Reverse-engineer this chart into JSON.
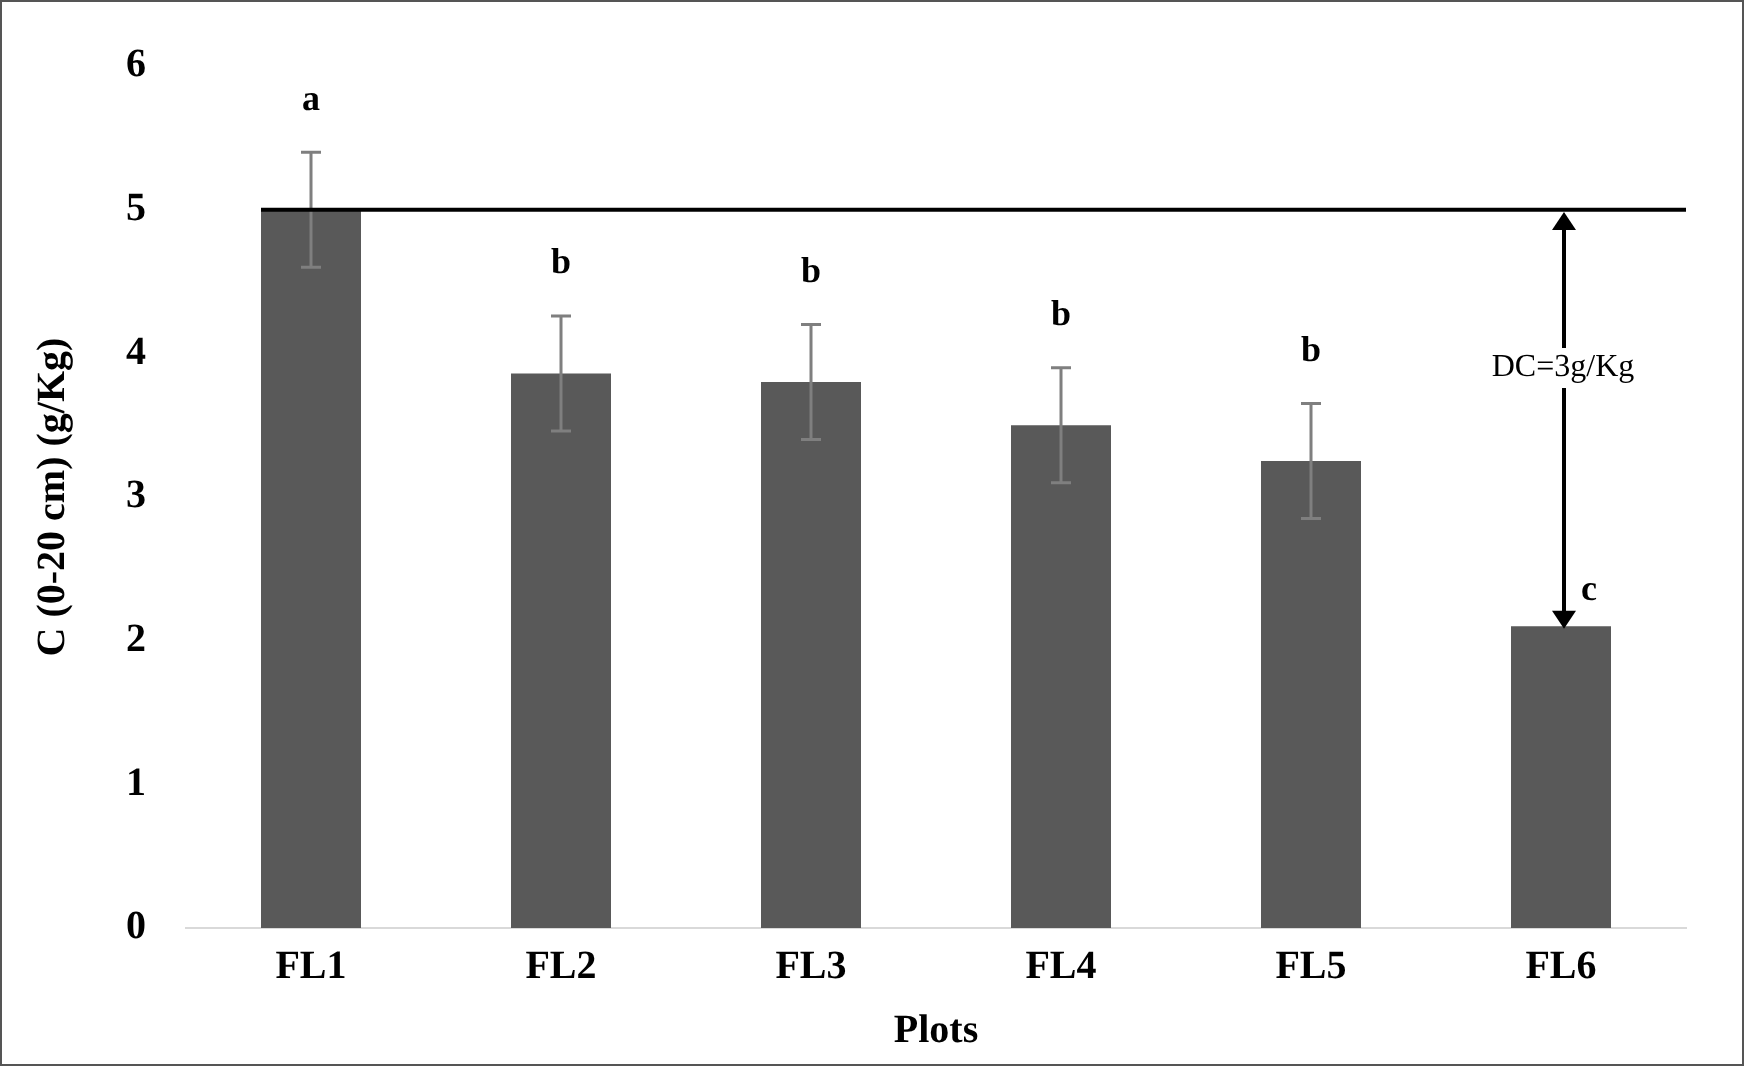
{
  "chart_data": {
    "type": "bar",
    "xlabel": "Plots",
    "ylabel": "C (0-20 cm) (g/Kg)",
    "categories": [
      "FL1",
      "FL2",
      "FL3",
      "FL4",
      "FL5",
      "FL6"
    ],
    "values": [
      5.0,
      3.86,
      3.8,
      3.5,
      3.25,
      2.1
    ],
    "errors": [
      0.4,
      0.4,
      0.4,
      0.4,
      0.4,
      null
    ],
    "color": "#595959",
    "ylim": [
      0,
      6
    ],
    "yticks": [
      0,
      1,
      2,
      3,
      4,
      5,
      6
    ],
    "grid": false,
    "legend": false,
    "ref_lines": [
      {
        "axis": "y",
        "value": 5,
        "color": "#000000"
      }
    ],
    "annotations": [
      "a",
      "b",
      "b",
      "b",
      "b",
      "c",
      "DC=3g/Kg"
    ]
  }
}
